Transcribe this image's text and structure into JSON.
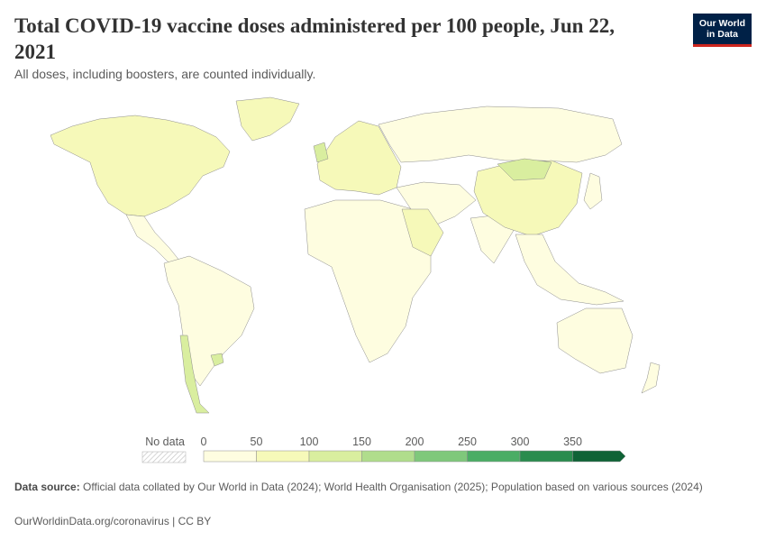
{
  "header": {
    "title": "Total COVID-19 vaccine doses administered per 100 people, Jun 22, 2021",
    "subtitle": "All doses, including boosters, are counted individually."
  },
  "logo": {
    "line1": "Our World",
    "line2": "in Data",
    "bg": "#002147",
    "accent": "#ce261e"
  },
  "legend": {
    "no_data_label": "No data",
    "ticks": [
      "0",
      "50",
      "100",
      "150",
      "200",
      "250",
      "300",
      "350"
    ],
    "bins": [
      0,
      50,
      100,
      150,
      200,
      250,
      300,
      350
    ],
    "colors": [
      "#fefde0",
      "#f6f9b9",
      "#d9ee9f",
      "#b0dd8c",
      "#7fc87b",
      "#4bad65",
      "#2a8c4e",
      "#0f6336"
    ]
  },
  "map": {
    "regions": [
      {
        "name": "North America",
        "value": 95
      },
      {
        "name": "Greenland",
        "value": 60
      },
      {
        "name": "Central America",
        "value": 30
      },
      {
        "name": "South America",
        "value": 30
      },
      {
        "name": "Chile",
        "value": 115
      },
      {
        "name": "Uruguay",
        "value": 105
      },
      {
        "name": "Europe",
        "value": 80
      },
      {
        "name": "United Kingdom",
        "value": 110
      },
      {
        "name": "Russia",
        "value": 25
      },
      {
        "name": "Africa",
        "value": 5
      },
      {
        "name": "Middle East",
        "value": 25
      },
      {
        "name": "Saudi Arabia",
        "value": 50
      },
      {
        "name": "India",
        "value": 22
      },
      {
        "name": "China",
        "value": 75
      },
      {
        "name": "Mongolia",
        "value": 115
      },
      {
        "name": "Southeast Asia",
        "value": 15
      },
      {
        "name": "Japan",
        "value": 35
      },
      {
        "name": "Australia",
        "value": 25
      },
      {
        "name": "New Zealand",
        "value": 12
      }
    ]
  },
  "source": {
    "label": "Data source:",
    "text": "Official data collated by Our World in Data (2024); World Health Organisation (2025); Population based on various sources (2024)"
  },
  "footer": {
    "text": "OurWorldinData.org/coronavirus | CC BY"
  }
}
